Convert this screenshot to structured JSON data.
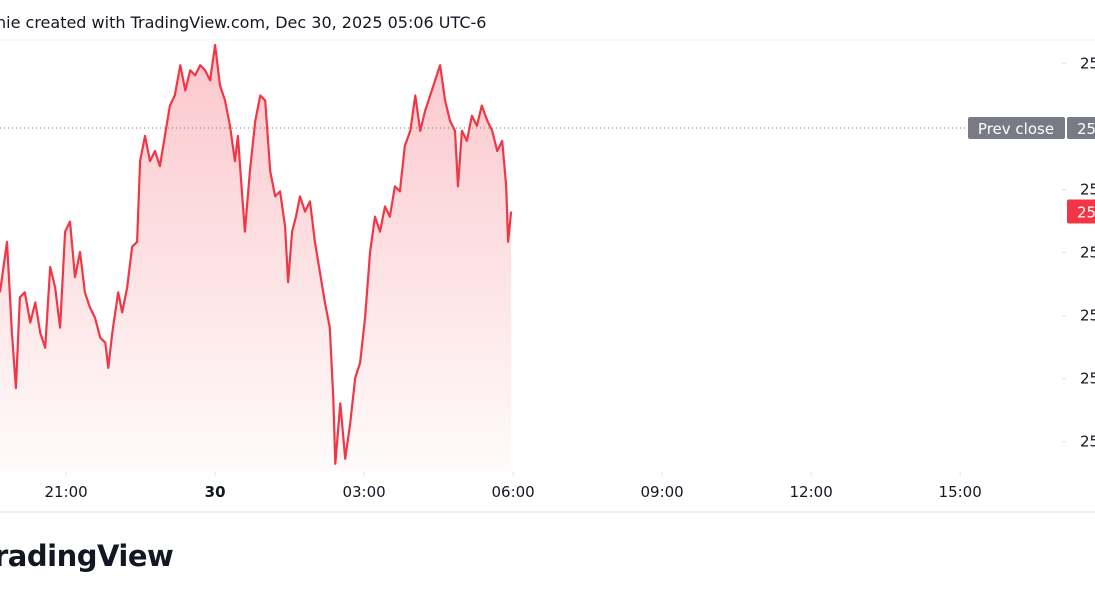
{
  "chart_data": {
    "type": "line",
    "title": "nie created with TradingView.com, Dec 30, 2025 05:06 UTC-6",
    "brand": "radingView",
    "color": "#f23645",
    "xlim": [
      -4.33,
      17.01
    ],
    "xticks": [
      {
        "value": -3,
        "label": "21:00"
      },
      {
        "value": 0,
        "label": "30"
      },
      {
        "value": 3,
        "label": "03:00"
      },
      {
        "value": 6,
        "label": "06:00"
      },
      {
        "value": 9,
        "label": "09:00"
      },
      {
        "value": 12,
        "label": "12:00"
      },
      {
        "value": 15,
        "label": "15:00"
      }
    ],
    "ylim": [
      25570.4,
      25707.4
    ],
    "yticks": [
      {
        "value": 25700,
        "label": "25"
      },
      {
        "value": 25660,
        "label": "25"
      },
      {
        "value": 25640,
        "label": "25"
      },
      {
        "value": 25620,
        "label": "25"
      },
      {
        "value": 25600,
        "label": "25"
      },
      {
        "value": 25580,
        "label": "25"
      }
    ],
    "prev_close": {
      "name": "Prev close",
      "value": 25679.5,
      "label": "25"
    },
    "last_price": {
      "value": 25653,
      "label": "25"
    },
    "x": [
      -4.33,
      -4.19,
      -4.09,
      -4.01,
      -3.93,
      -3.83,
      -3.72,
      -3.62,
      -3.52,
      -3.42,
      -3.32,
      -3.22,
      -3.12,
      -3.02,
      -2.92,
      -2.82,
      -2.72,
      -2.62,
      -2.52,
      -2.42,
      -2.31,
      -2.21,
      -2.15,
      -2.07,
      -1.95,
      -1.87,
      -1.77,
      -1.67,
      -1.57,
      -1.51,
      -1.41,
      -1.31,
      -1.21,
      -1.11,
      -1.01,
      -0.91,
      -0.81,
      -0.7,
      -0.6,
      -0.5,
      -0.4,
      -0.3,
      -0.2,
      -0.1,
      0,
      0.1,
      0.2,
      0.3,
      0.4,
      0.46,
      0.54,
      0.6,
      0.7,
      0.81,
      0.91,
      1.01,
      1.11,
      1.21,
      1.31,
      1.41,
      1.47,
      1.55,
      1.63,
      1.71,
      1.81,
      1.91,
      2.01,
      2.11,
      2.21,
      2.31,
      2.38,
      2.42,
      2.52,
      2.62,
      2.72,
      2.82,
      2.92,
      3.02,
      3.12,
      3.22,
      3.32,
      3.42,
      3.52,
      3.62,
      3.72,
      3.82,
      3.93,
      4.03,
      4.13,
      4.23,
      4.33,
      4.43,
      4.53,
      4.63,
      4.73,
      4.83,
      4.89,
      4.97,
      5.07,
      5.17,
      5.27,
      5.37,
      5.48,
      5.58,
      5.68,
      5.78,
      5.86,
      5.9,
      5.96
    ],
    "values": [
      25627.4,
      25643.4,
      25614.6,
      25597.0,
      25625.8,
      25627.4,
      25617.8,
      25624.2,
      25614.6,
      25609.8,
      25635.4,
      25629.0,
      25616.2,
      25646.6,
      25649.8,
      25632.2,
      25640.2,
      25627.4,
      25622.6,
      25619.4,
      25613.0,
      25611.4,
      25603.4,
      25614.6,
      25627.4,
      25621.0,
      25629.0,
      25641.8,
      25643.4,
      25669.0,
      25677.0,
      25669.0,
      25672.2,
      25667.4,
      25677.0,
      25686.6,
      25689.8,
      25699.4,
      25691.4,
      25697.8,
      25696.2,
      25699.4,
      25697.8,
      25694.6,
      25705.8,
      25693.0,
      25688.2,
      25680.2,
      25669.0,
      25677.0,
      25659.4,
      25646.6,
      25665.8,
      25681.8,
      25689.8,
      25688.2,
      25665.8,
      25657.8,
      25659.4,
      25648.2,
      25630.6,
      25646.6,
      25651.4,
      25657.8,
      25653.0,
      25656.2,
      25643.4,
      25633.8,
      25624.2,
      25616.2,
      25593.8,
      25573.0,
      25592.2,
      25574.6,
      25585.8,
      25600.2,
      25605.0,
      25619.4,
      25640.2,
      25651.4,
      25646.6,
      25654.6,
      25651.4,
      25661.0,
      25659.4,
      25673.8,
      25678.6,
      25689.8,
      25678.6,
      25685.0,
      25689.8,
      25694.6,
      25699.4,
      25688.2,
      25681.8,
      25678.6,
      25661.0,
      25678.6,
      25675.4,
      25683.4,
      25680.2,
      25686.6,
      25681.8,
      25678.6,
      25672.2,
      25675.4,
      25661.0,
      25643.4,
      25653.0
    ]
  }
}
